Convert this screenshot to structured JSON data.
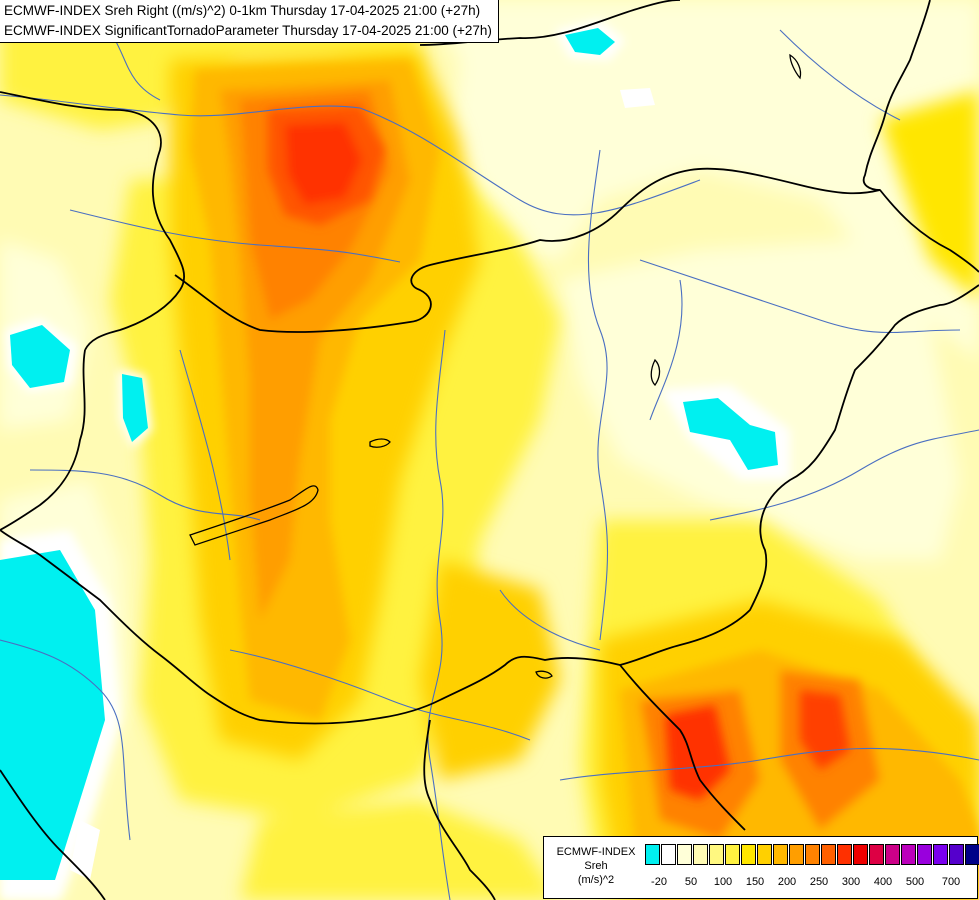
{
  "header": {
    "line1": "ECMWF-INDEX Sreh Right ((m/s)^2) 0-1km Thursday 17-04-2025 21:00 (+27h)",
    "line2": "ECMWF-INDEX SignificantTornadoParameter Thursday 17-04-2025 21:00 (+27h)"
  },
  "legend": {
    "title_lines": [
      "ECMWF-INDEX",
      "Sreh",
      "(m/s)^2"
    ],
    "swatches": [
      "#00f0f0",
      "#ffffff",
      "#ffffd8",
      "#fffbb4",
      "#fff880",
      "#fff240",
      "#ffe600",
      "#ffd000",
      "#ffb800",
      "#ff9e00",
      "#ff8200",
      "#ff6000",
      "#ff3000",
      "#ee0000",
      "#dd0044",
      "#cc0088",
      "#bb00bb",
      "#9900dd",
      "#7a00ee",
      "#5500cc",
      "#000088"
    ],
    "ticks": [
      "-20",
      "50",
      "100",
      "150",
      "200",
      "250",
      "300",
      "400",
      "500",
      "700"
    ]
  },
  "colors": {
    "border": "#000000",
    "river": "#4a6fc1"
  }
}
